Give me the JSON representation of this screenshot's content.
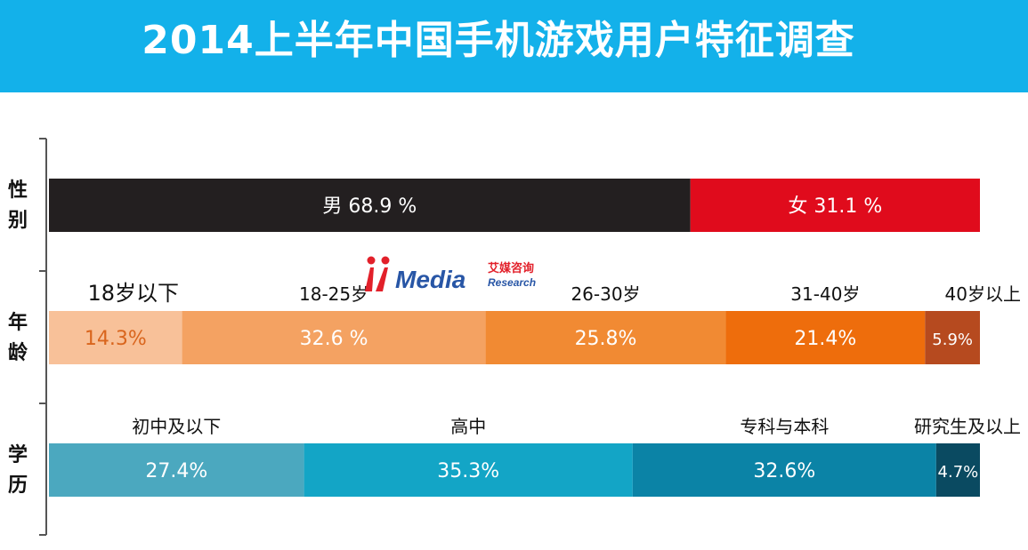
{
  "title": "2014上半年中国手机游戏用户特征调查",
  "watermark": {
    "brand": "iiMedia",
    "name_cn": "艾媒咨询",
    "name_en": "Research"
  },
  "colors": {
    "header": "#13b1ea",
    "axis": "#555555"
  },
  "chart_data": {
    "type": "bar",
    "orientation": "horizontal",
    "stacked": true,
    "normalized": true,
    "unit": "%",
    "xlim": [
      0,
      100
    ],
    "grid": false,
    "rows": [
      {
        "label": "性别",
        "segments": [
          {
            "name": "男",
            "value": 68.9,
            "display": "男  68.9 %",
            "color": "#231f20",
            "text_color": "#ffffff",
            "show_name_above": false
          },
          {
            "name": "女",
            "value": 31.1,
            "display": "女  31.1 %",
            "color": "#e00b1c",
            "text_color": "#ffffff",
            "show_name_above": false
          }
        ]
      },
      {
        "label": "年龄",
        "segments": [
          {
            "name": "18岁以下",
            "value": 14.3,
            "display": "14.3%",
            "color": "#f8c199",
            "text_color": "#d9651d",
            "show_name_above": true
          },
          {
            "name": "18-25岁",
            "value": 32.6,
            "display": "32.6 %",
            "color": "#f4a262",
            "text_color": "#ffffff",
            "show_name_above": true
          },
          {
            "name": "26-30岁",
            "value": 25.8,
            "display": "25.8%",
            "color": "#f18a33",
            "text_color": "#ffffff",
            "show_name_above": true
          },
          {
            "name": "31-40岁",
            "value": 21.4,
            "display": "21.4%",
            "color": "#ee6d0c",
            "text_color": "#ffffff",
            "show_name_above": true
          },
          {
            "name": "40岁以上",
            "value": 5.9,
            "display": "5.9%",
            "color": "#b64a1f",
            "text_color": "#ffffff",
            "show_name_above": true
          }
        ]
      },
      {
        "label": "学历",
        "segments": [
          {
            "name": "初中及以下",
            "value": 27.4,
            "display": "27.4%",
            "color": "#4ba8bf",
            "text_color": "#ffffff",
            "show_name_above": true
          },
          {
            "name": "高中",
            "value": 35.3,
            "display": "35.3%",
            "color": "#13a5c6",
            "text_color": "#ffffff",
            "show_name_above": true
          },
          {
            "name": "专科与本科",
            "value": 32.6,
            "display": "32.6%",
            "color": "#0b83a6",
            "text_color": "#ffffff",
            "show_name_above": true
          },
          {
            "name": "研究生及以上",
            "value": 4.7,
            "display": "4.7%",
            "color": "#0a4a61",
            "text_color": "#ffffff",
            "show_name_above": true
          }
        ]
      }
    ]
  }
}
